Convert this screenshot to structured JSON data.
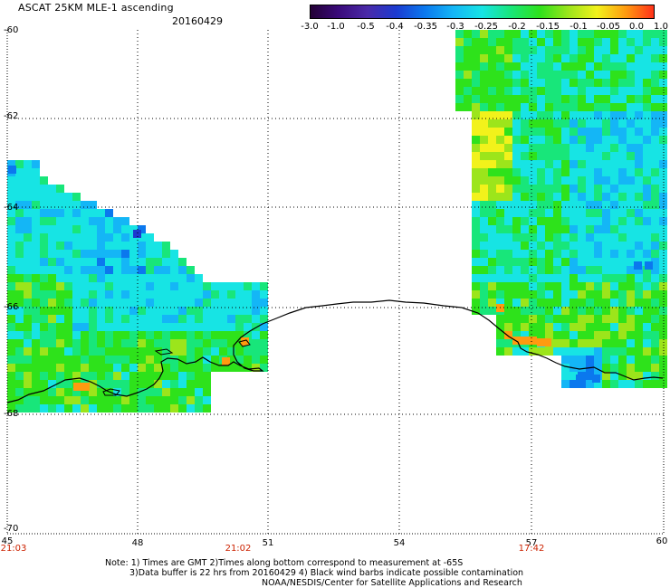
{
  "header": {
    "title": "ASCAT 25KM MLE-1 ascending",
    "date": "20160429"
  },
  "colorbar": {
    "ticks": [
      "-3.0",
      "-1.0",
      "-0.5",
      "-0.4",
      "-0.35",
      "-0.3",
      "-0.25",
      "-0.2",
      "-0.15",
      "-0.1",
      "-0.05",
      "0.0",
      "1.0"
    ],
    "colors": [
      "#220033",
      "#3a0a7a",
      "#4a2aa8",
      "#1c3ad0",
      "#0b78ee",
      "#14b6f6",
      "#17e4e4",
      "#18e67a",
      "#2ee21b",
      "#9ce51b",
      "#f2f21b",
      "#ff9a10",
      "#ff2e1a"
    ]
  },
  "map": {
    "lat_labels": [
      "-60",
      "-62",
      "-64",
      "-66",
      "-68",
      "-70"
    ],
    "lon_labels": [
      "45",
      "48",
      "51",
      "54",
      "57",
      "60"
    ],
    "time_labels": [
      "21:03",
      "21:02",
      "17:42"
    ],
    "lat_range": [
      -70,
      -60
    ],
    "lon_range": [
      45,
      60
    ],
    "gridlines": true,
    "swaths": [
      {
        "side": "west",
        "dominant_colors": [
          "#17e4e4",
          "#18e67a",
          "#2ee21b"
        ]
      },
      {
        "side": "east",
        "dominant_colors": [
          "#17e4e4",
          "#2ee21b",
          "#9ce51b",
          "#f2f21b"
        ]
      }
    ]
  },
  "notes": {
    "line1": "Note: 1) Times are GMT 2)Times along bottom correspond to measurement at -65S",
    "line2": "3)Data buffer is 22 hrs from 20160429 4) Black wind barbs indicate possible contamination",
    "line3": "NOAA/NESDIS/Center for Satellite Applications and Research"
  }
}
